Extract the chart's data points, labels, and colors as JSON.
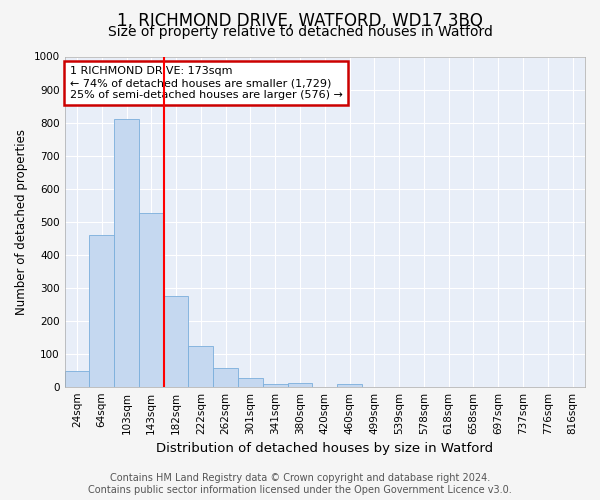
{
  "title": "1, RICHMOND DRIVE, WATFORD, WD17 3BQ",
  "subtitle": "Size of property relative to detached houses in Watford",
  "xlabel": "Distribution of detached houses by size in Watford",
  "ylabel": "Number of detached properties",
  "categories": [
    "24sqm",
    "64sqm",
    "103sqm",
    "143sqm",
    "182sqm",
    "222sqm",
    "262sqm",
    "301sqm",
    "341sqm",
    "380sqm",
    "420sqm",
    "460sqm",
    "499sqm",
    "539sqm",
    "578sqm",
    "618sqm",
    "658sqm",
    "697sqm",
    "737sqm",
    "776sqm",
    "816sqm"
  ],
  "values": [
    47,
    460,
    810,
    525,
    275,
    122,
    58,
    25,
    8,
    12,
    0,
    7,
    0,
    0,
    0,
    0,
    0,
    0,
    0,
    0,
    0
  ],
  "bar_color": "#c5d8f0",
  "bar_edge_color": "#7aaedc",
  "red_line_index": 4,
  "annotation_line1": "1 RICHMOND DRIVE: 173sqm",
  "annotation_line2": "← 74% of detached houses are smaller (1,729)",
  "annotation_line3": "25% of semi-detached houses are larger (576) →",
  "annotation_box_facecolor": "#ffffff",
  "annotation_box_edgecolor": "#cc0000",
  "ylim": [
    0,
    1000
  ],
  "yticks": [
    0,
    100,
    200,
    300,
    400,
    500,
    600,
    700,
    800,
    900,
    1000
  ],
  "background_color": "#e8eef8",
  "grid_color": "#ffffff",
  "fig_facecolor": "#f5f5f5",
  "footer_line1": "Contains HM Land Registry data © Crown copyright and database right 2024.",
  "footer_line2": "Contains public sector information licensed under the Open Government Licence v3.0.",
  "title_fontsize": 12,
  "subtitle_fontsize": 10,
  "xlabel_fontsize": 9.5,
  "ylabel_fontsize": 8.5,
  "tick_fontsize": 7.5,
  "annotation_fontsize": 8,
  "footer_fontsize": 7
}
